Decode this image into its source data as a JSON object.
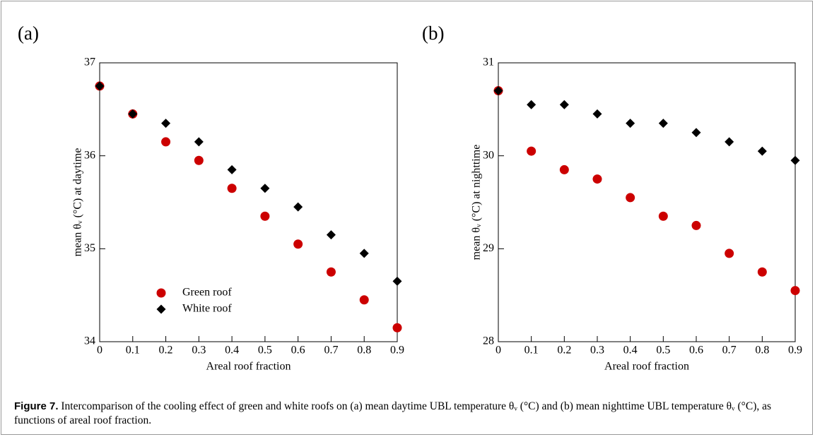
{
  "chart_data": [
    {
      "type": "scatter",
      "panel": "(a)",
      "xlabel": "Areal roof fraction",
      "ylabel": "mean θᵥ (°C) at daytime",
      "x": [
        0,
        0.1,
        0.2,
        0.3,
        0.4,
        0.5,
        0.6,
        0.7,
        0.8,
        0.9
      ],
      "series": [
        {
          "name": "Green roof",
          "color": "#cc0000",
          "marker": "circle",
          "values": [
            36.75,
            36.45,
            36.15,
            35.95,
            35.65,
            35.35,
            35.05,
            34.75,
            34.45,
            34.15
          ]
        },
        {
          "name": "White roof",
          "color": "#000000",
          "marker": "diamond",
          "values": [
            36.75,
            36.45,
            36.35,
            36.15,
            35.85,
            35.65,
            35.45,
            35.15,
            34.95,
            34.65
          ]
        }
      ],
      "xlim": [
        0,
        0.9
      ],
      "xticks": [
        0,
        0.1,
        0.2,
        0.3,
        0.4,
        0.5,
        0.6,
        0.7,
        0.8,
        0.9
      ],
      "ylim": [
        34,
        37
      ],
      "yticks": [
        34,
        35,
        36,
        37
      ],
      "legend": "lower left"
    },
    {
      "type": "scatter",
      "panel": "(b)",
      "xlabel": "Areal roof fraction",
      "ylabel": "mean θᵥ (°C) at nighttime",
      "x": [
        0,
        0.1,
        0.2,
        0.3,
        0.4,
        0.5,
        0.6,
        0.7,
        0.8,
        0.9
      ],
      "series": [
        {
          "color": "#cc0000",
          "marker": "circle",
          "values": [
            30.7,
            30.05,
            29.85,
            29.75,
            29.55,
            29.35,
            29.25,
            28.95,
            28.75,
            28.55
          ]
        },
        {
          "color": "#000000",
          "marker": "diamond",
          "values": [
            30.7,
            30.55,
            30.55,
            30.45,
            30.35,
            30.35,
            30.25,
            30.15,
            30.05,
            29.95
          ]
        }
      ],
      "xlim": [
        0,
        0.9
      ],
      "xticks": [
        0,
        0.1,
        0.2,
        0.3,
        0.4,
        0.5,
        0.6,
        0.7,
        0.8,
        0.9
      ],
      "ylim": [
        28,
        31
      ],
      "yticks": [
        28,
        29,
        30,
        31
      ]
    }
  ],
  "caption": {
    "label": "Figure 7.",
    "text": "Intercomparison of the cooling effect of green and white roofs on (a) mean daytime UBL temperature θᵥ (°C) and (b) mean nighttime UBL temperature θᵥ (°C), as functions of areal roof fraction."
  }
}
